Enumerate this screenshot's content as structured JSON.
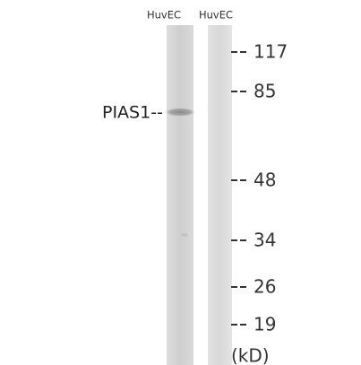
{
  "lanes": [
    "HuvEC",
    "HuvEC"
  ],
  "band_label": "PIAS1--",
  "markers": [
    "117",
    "85",
    "48",
    "34",
    "26",
    "19"
  ],
  "unit": "(kD)"
}
